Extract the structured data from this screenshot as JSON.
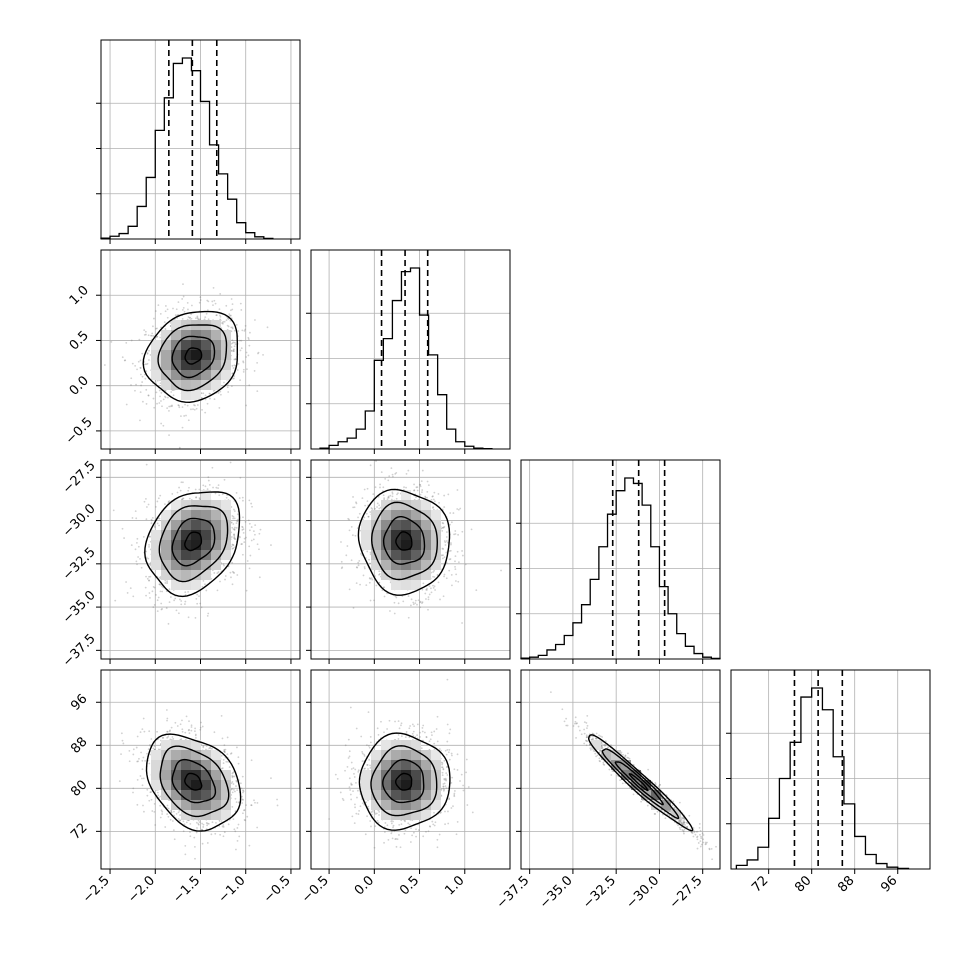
{
  "chart_data": {
    "type": "corner",
    "grid": true,
    "params": [
      {
        "range": [
          -2.6,
          -0.4
        ],
        "ticks": [
          -2.5,
          -2.0,
          -1.5,
          -1.0,
          -0.5
        ],
        "tick_labels": [
          "−2.5",
          "−2.0",
          "−1.5",
          "−1.0",
          "−0.5"
        ],
        "quantiles": [
          -1.85,
          -1.59,
          -1.32
        ],
        "mean": -1.58,
        "sd": 0.26,
        "hist_edges": [
          -2.6,
          -2.5,
          -2.4,
          -2.3,
          -2.2,
          -2.1,
          -2.0,
          -1.9,
          -1.8,
          -1.7,
          -1.6,
          -1.5,
          -1.4,
          -1.3,
          -1.2,
          -1.1,
          -1.0,
          -0.9,
          -0.8,
          -0.7
        ],
        "hist_counts": [
          0.005,
          0.015,
          0.03,
          0.07,
          0.18,
          0.34,
          0.6,
          0.78,
          0.97,
          1.0,
          0.93,
          0.76,
          0.52,
          0.36,
          0.22,
          0.09,
          0.035,
          0.012,
          0.003
        ]
      },
      {
        "range": [
          -0.7,
          1.5
        ],
        "ticks": [
          -0.5,
          0.0,
          0.5,
          1.0
        ],
        "tick_labels": [
          "−0.5",
          "0.0",
          "0.5",
          "1.0"
        ],
        "quantiles": [
          0.08,
          0.34,
          0.59
        ],
        "mean": 0.33,
        "sd": 0.25,
        "hist_edges": [
          -0.6,
          -0.5,
          -0.4,
          -0.3,
          -0.2,
          -0.1,
          0.0,
          0.1,
          0.2,
          0.3,
          0.4,
          0.5,
          0.6,
          0.7,
          0.8,
          0.9,
          1.0,
          1.1,
          1.2,
          1.3
        ],
        "hist_counts": [
          0.005,
          0.02,
          0.04,
          0.06,
          0.11,
          0.21,
          0.49,
          0.61,
          0.82,
          0.98,
          1.0,
          0.74,
          0.52,
          0.3,
          0.11,
          0.04,
          0.015,
          0.005,
          0.002
        ]
      },
      {
        "range": [
          -38.0,
          -26.5
        ],
        "ticks": [
          -37.5,
          -35.0,
          -32.5,
          -30.0,
          -27.5
        ],
        "tick_labels": [
          "−37.5",
          "−35.0",
          "−32.5",
          "−30.0",
          "−27.5"
        ],
        "quantiles": [
          -32.7,
          -31.2,
          -29.7
        ],
        "mean": -31.2,
        "sd": 1.5,
        "hist_edges": [
          -38.0,
          -37.5,
          -37.0,
          -36.5,
          -36.0,
          -35.5,
          -35.0,
          -34.5,
          -34.0,
          -33.5,
          -33.0,
          -32.5,
          -32.0,
          -31.5,
          -31.0,
          -30.5,
          -30.0,
          -29.5,
          -29.0,
          -28.5,
          -28.0,
          -27.5,
          -27.0,
          -26.5
        ],
        "hist_counts": [
          0.005,
          0.01,
          0.02,
          0.05,
          0.08,
          0.13,
          0.2,
          0.3,
          0.44,
          0.62,
          0.8,
          0.93,
          1.0,
          0.97,
          0.85,
          0.62,
          0.4,
          0.25,
          0.14,
          0.07,
          0.03,
          0.01,
          0.003
        ]
      },
      {
        "range": [
          65.0,
          102.0
        ],
        "ticks": [
          72,
          80,
          88,
          96
        ],
        "tick_labels": [
          "72",
          "80",
          "88",
          "96"
        ],
        "quantiles": [
          76.8,
          81.2,
          85.7
        ],
        "mean": 81.2,
        "sd": 4.4,
        "hist_edges": [
          66,
          68,
          70,
          72,
          74,
          76,
          78,
          80,
          82,
          84,
          86,
          88,
          90,
          92,
          94,
          96,
          98
        ],
        "hist_counts": [
          0.02,
          0.05,
          0.12,
          0.28,
          0.5,
          0.7,
          0.95,
          1.0,
          0.88,
          0.62,
          0.36,
          0.18,
          0.08,
          0.03,
          0.01,
          0.003
        ]
      }
    ],
    "correlations": [
      [
        1.0,
        0.15,
        0.25,
        -0.3
      ],
      [
        0.15,
        1.0,
        -0.05,
        0.02
      ],
      [
        0.25,
        -0.05,
        1.0,
        -0.97
      ],
      [
        -0.3,
        0.02,
        -0.97,
        1.0
      ]
    ]
  }
}
